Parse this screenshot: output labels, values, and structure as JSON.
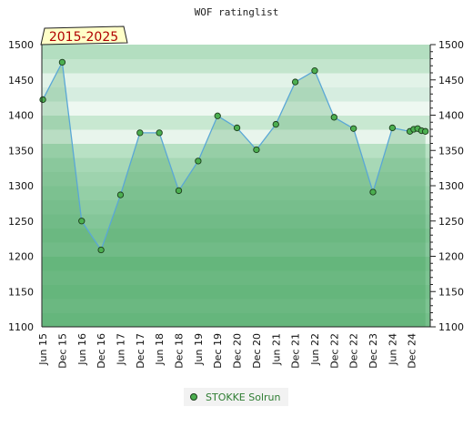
{
  "chart_data": {
    "type": "area",
    "title": "WOF ratinglist",
    "period_label": "2015-2025",
    "xlabel": "",
    "ylabel": "",
    "ylim": [
      1100,
      1500
    ],
    "y_ticks": [
      1100,
      1150,
      1200,
      1250,
      1300,
      1350,
      1400,
      1450,
      1500
    ],
    "x_ticks": [
      "Jun 15",
      "Dec 15",
      "Jun 16",
      "Dec 16",
      "Jun 17",
      "Dec 17",
      "Jun 18",
      "Dec 18",
      "Jun 19",
      "Dec 19",
      "Dec 20",
      "Dec 20",
      "Jun 21",
      "Dec 21",
      "Jun 22",
      "Dec 22",
      "Dec 22",
      "Dec 23",
      "Jun 24",
      "Dec 24"
    ],
    "grid": true,
    "legend_position": "bottom",
    "series": [
      {
        "name": "STOKKE Solrun",
        "color": "#5aa7d6",
        "x": [
          0,
          1,
          2,
          3,
          4,
          5,
          6,
          7,
          8,
          9,
          10,
          11,
          12,
          13,
          14,
          15,
          16,
          17,
          18,
          18.9,
          19.1,
          19.3,
          19.5,
          19.7
        ],
        "values": [
          1422,
          1475,
          1250,
          1209,
          1287,
          1375,
          1375,
          1293,
          1335,
          1399,
          1382,
          1351,
          1387,
          1447,
          1463,
          1397,
          1381,
          1291,
          1382,
          1377,
          1380,
          1381,
          1378,
          1377
        ]
      }
    ]
  }
}
